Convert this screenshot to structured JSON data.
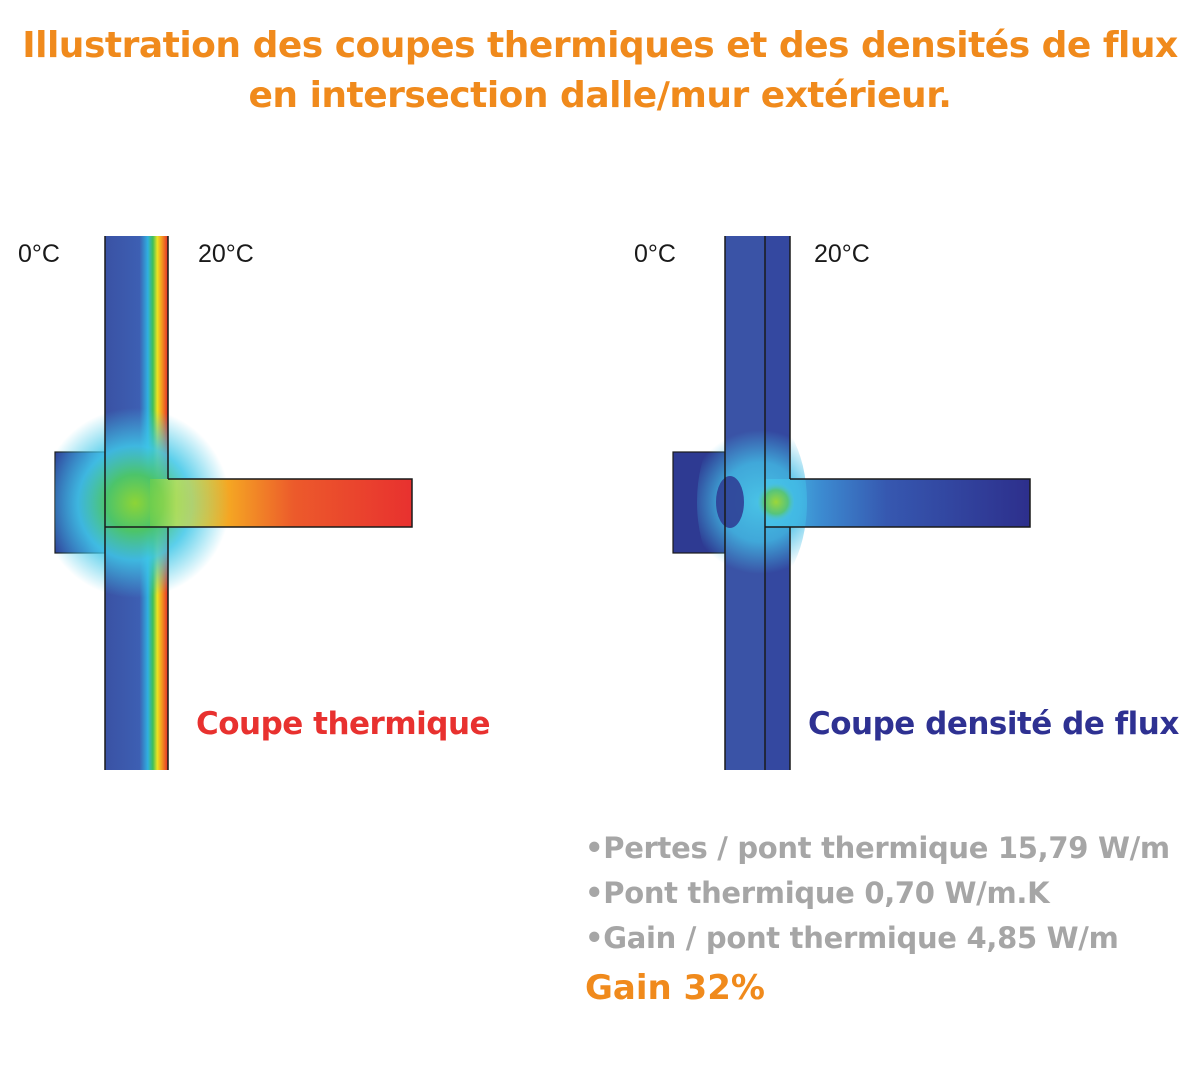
{
  "title": {
    "line1": "Illustration des coupes thermiques et des densités de flux",
    "line2": "en intersection dalle/mur extérieur."
  },
  "left_panel": {
    "temp_outside": "0°C",
    "temp_inside": "20°C",
    "caption": "Coupe thermique",
    "caption_color": "#e8312f"
  },
  "right_panel": {
    "temp_outside": "0°C",
    "temp_inside": "20°C",
    "caption": "Coupe densité de flux",
    "caption_color": "#2e3192"
  },
  "stats": {
    "line1": "•Pertes / pont thermique 15,79 W/m",
    "line2": "•Pont thermique 0,70 W/m.K",
    "line3": "•Gain / pont thermique 4,85 W/m",
    "gain": "Gain 32%"
  },
  "colors": {
    "accent_orange": "#f08a1c",
    "stat_gray": "#a6a6a6",
    "wall_blue": "#3a55a8",
    "hot_red": "#e8312f"
  }
}
